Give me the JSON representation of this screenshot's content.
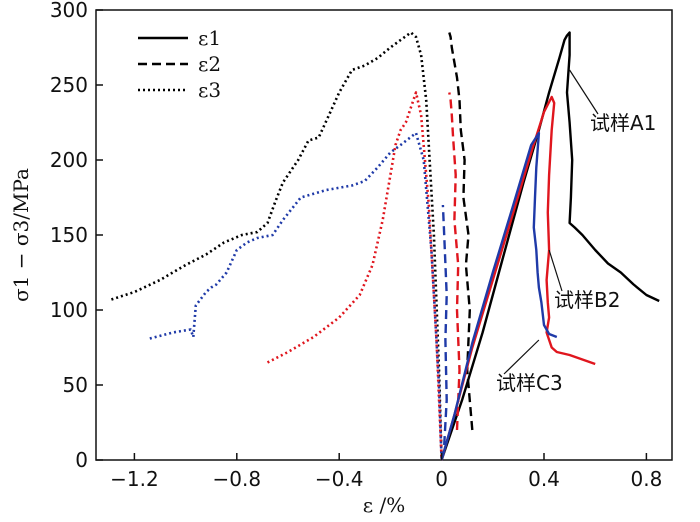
{
  "chart_data": {
    "type": "line",
    "title": "",
    "xlabel": "ε /%",
    "ylabel": "σ1 − σ3/MPa",
    "xlim": [
      -1.35,
      0.9
    ],
    "ylim": [
      0,
      300
    ],
    "xticks": [
      -1.2,
      -0.8,
      -0.4,
      0,
      0.4,
      0.8
    ],
    "xtick_labels": [
      "−1.2",
      "−0.8",
      "−0.4",
      "0",
      "0.4",
      "0.8"
    ],
    "yticks": [
      0,
      50,
      100,
      150,
      200,
      250,
      300
    ],
    "ytick_labels": [
      "0",
      "50",
      "100",
      "150",
      "200",
      "250",
      "300"
    ],
    "grid": false,
    "legend_position": "top-left",
    "legend": [
      {
        "label": "ε1",
        "style": "solid"
      },
      {
        "label": "ε2",
        "style": "dashed"
      },
      {
        "label": "ε3",
        "style": "dotted"
      }
    ],
    "annotations": [
      {
        "text": "试样A1",
        "target": [
          0.5,
          260
        ]
      },
      {
        "text": "试样B2",
        "target": [
          0.42,
          140
        ]
      },
      {
        "text": "试样C3",
        "target": [
          0.38,
          80
        ]
      }
    ],
    "colors": {
      "A1": "#000000",
      "B2": "#e0161e",
      "C3": "#1f3aa8"
    },
    "series": [
      {
        "specimen": "试样A1",
        "strain": "ε1",
        "style": "solid",
        "color": "#000000",
        "x": [
          0.0,
          0.02,
          0.08,
          0.16,
          0.24,
          0.32,
          0.38,
          0.42,
          0.46,
          0.48,
          0.49,
          0.5,
          0.5,
          0.49,
          0.5,
          0.51,
          0.505,
          0.5,
          0.52,
          0.55,
          0.6,
          0.65,
          0.7,
          0.75,
          0.8,
          0.85
        ],
        "y": [
          0,
          10,
          40,
          85,
          135,
          185,
          220,
          245,
          268,
          280,
          283,
          285,
          270,
          245,
          225,
          200,
          175,
          158,
          155,
          150,
          140,
          131,
          125,
          117,
          110,
          106
        ]
      },
      {
        "specimen": "试样A1",
        "strain": "ε2",
        "style": "dashed",
        "color": "#000000",
        "x": [
          0.12,
          0.1,
          0.11,
          0.095,
          0.105,
          0.085,
          0.09,
          0.075,
          0.07,
          0.06,
          0.05,
          0.04,
          0.035,
          0.03
        ],
        "y": [
          20,
          60,
          100,
          130,
          150,
          175,
          200,
          220,
          240,
          255,
          265,
          275,
          282,
          285
        ]
      },
      {
        "specimen": "试样A1",
        "strain": "ε3",
        "style": "dotted",
        "color": "#000000",
        "x": [
          -1.29,
          -1.2,
          -1.1,
          -1.0,
          -0.92,
          -0.85,
          -0.78,
          -0.72,
          -0.68,
          -0.65,
          -0.62,
          -0.6,
          -0.56,
          -0.52,
          -0.48,
          -0.44,
          -0.4,
          -0.35,
          -0.3,
          -0.25,
          -0.2,
          -0.16,
          -0.12,
          -0.1,
          -0.08,
          -0.06,
          -0.03,
          -0.01,
          0.0
        ],
        "y": [
          107,
          112,
          120,
          130,
          137,
          145,
          150,
          152,
          158,
          172,
          185,
          190,
          200,
          213,
          215,
          230,
          245,
          260,
          263,
          268,
          275,
          280,
          285,
          282,
          270,
          240,
          150,
          60,
          0
        ]
      },
      {
        "specimen": "试样B2",
        "strain": "ε1",
        "style": "solid",
        "color": "#e0161e",
        "x": [
          0.0,
          0.05,
          0.12,
          0.2,
          0.28,
          0.35,
          0.4,
          0.43,
          0.44,
          0.43,
          0.42,
          0.415,
          0.42,
          0.41,
          0.415,
          0.42,
          0.41,
          0.43,
          0.45,
          0.5,
          0.55,
          0.6
        ],
        "y": [
          0,
          30,
          75,
          120,
          165,
          205,
          232,
          242,
          238,
          220,
          190,
          165,
          140,
          120,
          105,
          95,
          85,
          75,
          72,
          70,
          67,
          64
        ]
      },
      {
        "specimen": "试样B2",
        "strain": "ε2",
        "style": "dashed",
        "color": "#e0161e",
        "x": [
          0.06,
          0.07,
          0.06,
          0.065,
          0.05,
          0.055,
          0.045,
          0.04,
          0.035,
          0.03
        ],
        "y": [
          20,
          60,
          100,
          130,
          160,
          190,
          215,
          230,
          240,
          245
        ]
      },
      {
        "specimen": "试样B2",
        "strain": "ε3",
        "style": "dotted",
        "color": "#e0161e",
        "x": [
          -0.68,
          -0.6,
          -0.5,
          -0.4,
          -0.32,
          -0.27,
          -0.23,
          -0.2,
          -0.18,
          -0.16,
          -0.14,
          -0.12,
          -0.1,
          -0.08,
          -0.05,
          -0.02,
          0.0
        ],
        "y": [
          65,
          72,
          82,
          95,
          110,
          130,
          160,
          190,
          210,
          220,
          225,
          235,
          245,
          230,
          170,
          80,
          0
        ]
      },
      {
        "specimen": "试样C3",
        "strain": "ε1",
        "style": "solid",
        "color": "#1f3aa8",
        "x": [
          0.0,
          0.05,
          0.12,
          0.2,
          0.28,
          0.35,
          0.38,
          0.37,
          0.365,
          0.36,
          0.37,
          0.375,
          0.38,
          0.39,
          0.4,
          0.42,
          0.45
        ],
        "y": [
          0,
          30,
          78,
          125,
          170,
          210,
          218,
          195,
          175,
          155,
          140,
          125,
          115,
          105,
          90,
          84,
          82
        ]
      },
      {
        "specimen": "试样C3",
        "strain": "ε2",
        "style": "dashed",
        "color": "#1f3aa8",
        "x": [
          0.01,
          0.02,
          0.015,
          0.02,
          0.01,
          0.005
        ],
        "y": [
          10,
          40,
          80,
          110,
          150,
          170
        ]
      },
      {
        "specimen": "试样C3",
        "strain": "ε3",
        "style": "dotted",
        "color": "#1f3aa8",
        "x": [
          -1.14,
          -1.05,
          -0.98,
          -0.97,
          -0.96,
          -0.92,
          -0.9,
          -0.88,
          -0.84,
          -0.8,
          -0.76,
          -0.72,
          -0.66,
          -0.62,
          -0.55,
          -0.45,
          -0.35,
          -0.3,
          -0.25,
          -0.2,
          -0.16,
          -0.13,
          -0.1,
          -0.07,
          -0.04,
          -0.01,
          0.0
        ],
        "y": [
          81,
          85,
          87,
          82,
          103,
          112,
          115,
          117,
          125,
          140,
          145,
          148,
          150,
          160,
          175,
          180,
          183,
          186,
          195,
          205,
          210,
          214,
          218,
          200,
          140,
          50,
          0
        ]
      }
    ]
  }
}
